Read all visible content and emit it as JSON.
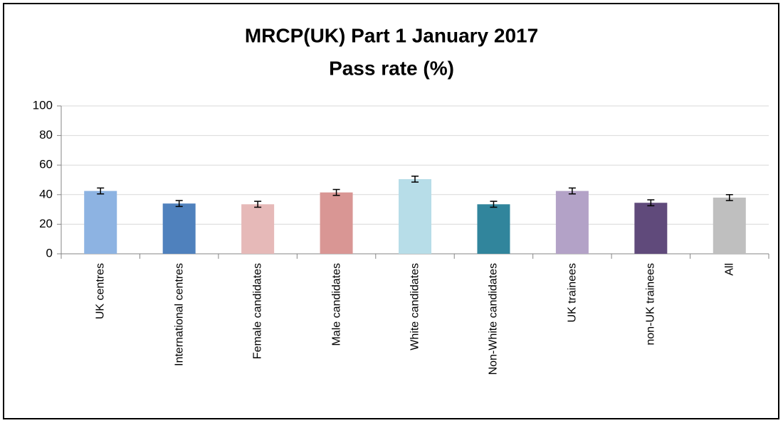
{
  "chart_data": {
    "type": "bar",
    "title": "MRCP(UK) Part 1 January 2017",
    "subtitle": "Pass rate (%)",
    "categories": [
      "UK centres",
      "International centres",
      "Female candidates",
      "Male candidates",
      "White candidates",
      "Non-White candidates",
      "UK trainees",
      "non-UK trainees",
      "All"
    ],
    "values": [
      42.5,
      34,
      33.5,
      41.5,
      50.5,
      33.5,
      42.5,
      34.5,
      38
    ],
    "errors": [
      2,
      2,
      2,
      2,
      2,
      2,
      2,
      2,
      2
    ],
    "colors": [
      "#8db3e2",
      "#4f81bd",
      "#e6b9b8",
      "#d99694",
      "#b7dde8",
      "#31859c",
      "#b3a2c7",
      "#604a7b",
      "#bfbfbf"
    ],
    "ylim": [
      0,
      100
    ],
    "yticks": [
      0,
      20,
      40,
      60,
      80,
      100
    ],
    "grid": true
  }
}
